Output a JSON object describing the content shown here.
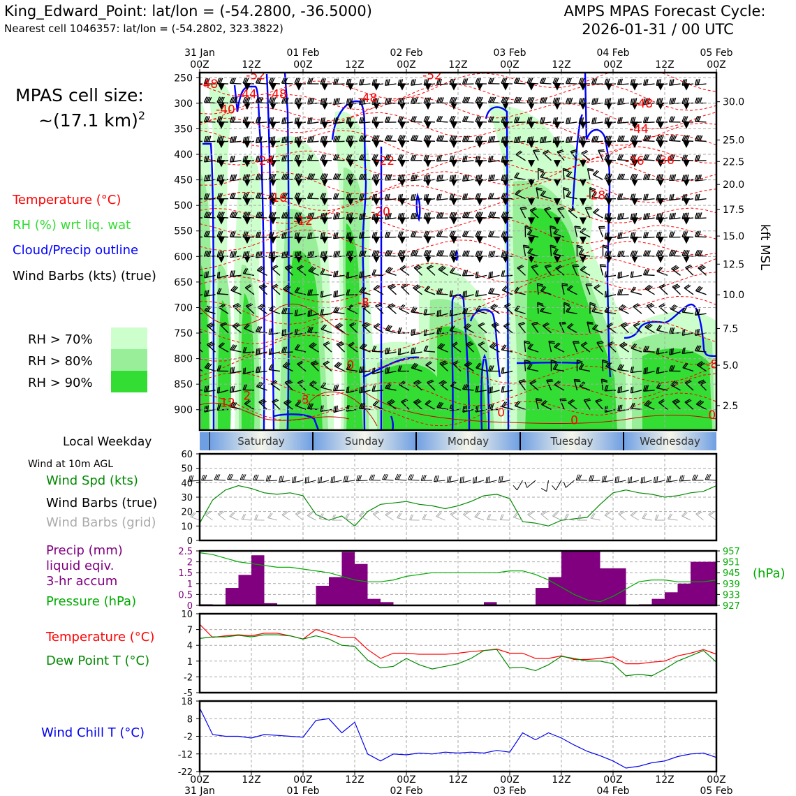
{
  "header": {
    "station_line": "King_Edward_Point: lat/lon = (-54.2800, -36.5000)",
    "cell_line": "Nearest cell 1046357: lat/lon = (-54.2802, 323.3822)",
    "cycle_title": "AMPS MPAS Forecast Cycle:",
    "cycle_time": "2026-01-31 / 00 UTC"
  },
  "legend": {
    "cell_size_label": "MPAS cell size:",
    "cell_size_value": "~(17.1 km)",
    "cell_size_exp": "2",
    "temperature": "Temperature (°C)",
    "rh": "RH (%) wrt liq. wat",
    "cloud": "Cloud/Precip outline",
    "wind_barbs": "Wind Barbs (kts) (true)",
    "rh70": "RH > 70%",
    "rh80": "RH > 80%",
    "rh90": "RH > 90%",
    "colors": {
      "temp": "#ff0000",
      "rh": "#33dd33",
      "cloud": "#0000ff",
      "rh70": "#ccffcc",
      "rh80": "#99ee99",
      "rh90": "#33dd33"
    }
  },
  "time_axis": {
    "top_dates": [
      "31 Jan",
      "",
      "01 Feb",
      "",
      "02 Feb",
      "",
      "03 Feb",
      "",
      "04 Feb",
      "",
      "05 Feb"
    ],
    "hours": [
      "00Z",
      "12Z",
      "00Z",
      "12Z",
      "00Z",
      "12Z",
      "00Z",
      "12Z",
      "00Z",
      "12Z",
      "00Z"
    ]
  },
  "weekday": {
    "title": "Local Weekday",
    "days": [
      "Saturday",
      "Sunday",
      "Monday",
      "Tuesday",
      "Wednesday"
    ]
  },
  "wind_panel": {
    "subtitle": "Wind at 10m AGL",
    "label_speed": "Wind Spd (kts)",
    "label_barbs": "Wind Barbs (true)",
    "label_grid": "Wind Barbs (grid)"
  },
  "precip_panel": {
    "label1": "Precip (mm)",
    "label2": "liquid eqiv.",
    "label3": "3-hr accum",
    "label_pressure": "Pressure (hPa)",
    "hpa_unit": "(hPa)"
  },
  "temp_panel": {
    "label_temp": "Temperature (°C)",
    "label_dew": "Dew Point T (°C)"
  },
  "chill_panel": {
    "label": "Wind Chill T (°C)"
  },
  "xsect_axes": {
    "right_label": "kft MSL"
  },
  "chart_data": [
    {
      "type": "heatmap",
      "title": "",
      "yaxis": "pressure (hPa)",
      "ylim": [
        940,
        240
      ],
      "y_ticks": [
        250,
        300,
        350,
        400,
        450,
        500,
        550,
        600,
        650,
        700,
        750,
        800,
        850,
        900
      ],
      "right_ticks_kft": [
        "30.0",
        "25.0",
        "22.5",
        "20.0",
        "17.5",
        "15.0",
        "12.5",
        "10.0",
        "7.5",
        "5.0",
        "2.5"
      ],
      "right_ticks_p": [
        297,
        372,
        414,
        459,
        508,
        560,
        615,
        675,
        741,
        813,
        892
      ],
      "x_hours": [
        0,
        120
      ],
      "temp_labels": [
        {
          "x": 2,
          "p": 262,
          "text": "-48"
        },
        {
          "x": 13,
          "p": 245,
          "text": "-52"
        },
        {
          "x": 11,
          "p": 282,
          "text": "-44"
        },
        {
          "x": 6,
          "p": 312,
          "text": "-40"
        },
        {
          "x": 18,
          "p": 282,
          "text": "-48"
        },
        {
          "x": 39,
          "p": 289,
          "text": "-48"
        },
        {
          "x": 54,
          "p": 245,
          "text": "-52"
        },
        {
          "x": 103,
          "p": 300,
          "text": "-48"
        },
        {
          "x": 102,
          "p": 350,
          "text": "-44"
        },
        {
          "x": 108,
          "p": 411,
          "text": "-36"
        },
        {
          "x": 101,
          "p": 412,
          "text": "-36"
        },
        {
          "x": 15,
          "p": 412,
          "text": "-24"
        },
        {
          "x": 43,
          "p": 412,
          "text": "-22"
        },
        {
          "x": 92,
          "p": 480,
          "text": "-28"
        },
        {
          "x": 18,
          "p": 485,
          "text": "-16"
        },
        {
          "x": 24,
          "p": 530,
          "text": "-12"
        },
        {
          "x": 42,
          "p": 512,
          "text": "-20"
        },
        {
          "x": 38,
          "p": 690,
          "text": "-8"
        },
        {
          "x": 35,
          "p": 812,
          "text": "0"
        },
        {
          "x": 24,
          "p": 880,
          "text": "-8"
        },
        {
          "x": 6,
          "p": 886,
          "text": "-12"
        },
        {
          "x": 11,
          "p": 872,
          "text": "2"
        },
        {
          "x": 70,
          "p": 905,
          "text": "0"
        },
        {
          "x": 87,
          "p": 920,
          "text": "0"
        },
        {
          "x": 119,
          "p": 910,
          "text": "0"
        },
        {
          "x": 119,
          "p": 811,
          "text": "-8"
        }
      ]
    },
    {
      "type": "line",
      "title": "",
      "ylabel": "Wind Spd (kts)",
      "ylim": [
        0,
        60
      ],
      "y_ticks": [
        0,
        10,
        20,
        30,
        40,
        50,
        60
      ],
      "x": [
        0,
        3,
        6,
        9,
        12,
        15,
        18,
        21,
        24,
        27,
        30,
        33,
        36,
        39,
        42,
        45,
        48,
        51,
        54,
        57,
        60,
        63,
        66,
        69,
        72,
        75,
        78,
        81,
        84,
        87,
        90,
        93,
        96,
        99,
        102,
        105,
        108,
        111,
        114,
        117,
        120
      ],
      "series": [
        {
          "values": [
            12,
            28,
            35,
            38,
            36,
            33,
            32,
            33,
            31,
            18,
            14,
            17,
            10,
            20,
            25,
            26,
            27,
            25,
            24,
            22,
            24,
            27,
            31,
            32,
            29,
            13,
            12,
            10,
            14,
            15,
            16,
            25,
            33,
            35,
            33,
            32,
            30,
            31,
            33,
            34,
            38
          ]
        }
      ]
    },
    {
      "type": "bar",
      "title": "",
      "ylabel": "Precip (mm)",
      "ylim": [
        0,
        2.5
      ],
      "y_ticks": [
        0,
        0.5,
        1.0,
        1.5,
        2.0,
        2.5
      ],
      "pressure_ticks": [
        927,
        933,
        939,
        945,
        951,
        957
      ],
      "pressure_ylim": [
        927,
        957
      ],
      "x": [
        0,
        3,
        6,
        9,
        12,
        15,
        18,
        21,
        24,
        27,
        30,
        33,
        36,
        39,
        42,
        45,
        48,
        51,
        54,
        57,
        60,
        63,
        66,
        69,
        72,
        75,
        78,
        81,
        84,
        87,
        90,
        93,
        96,
        99,
        102,
        105,
        108,
        111,
        114,
        117
      ],
      "values": [
        0.05,
        0,
        0.8,
        1.4,
        2.3,
        0.1,
        0,
        0,
        0,
        0.9,
        1.3,
        2.45,
        1.9,
        0.3,
        0.15,
        0,
        0,
        0.02,
        0,
        0,
        0,
        0,
        0.15,
        0,
        0,
        0,
        0.8,
        1.3,
        2.5,
        2.5,
        2.5,
        1.7,
        1.7,
        0,
        0.05,
        0.3,
        0.6,
        1.0,
        2.0,
        2.0
      ],
      "series": [
        {
          "name": "Pressure (hPa)",
          "x": [
            0,
            3,
            6,
            9,
            12,
            15,
            18,
            21,
            24,
            27,
            30,
            33,
            36,
            39,
            42,
            45,
            48,
            51,
            54,
            57,
            60,
            63,
            66,
            69,
            72,
            75,
            78,
            81,
            84,
            87,
            90,
            93,
            96,
            99,
            102,
            105,
            108,
            111,
            114,
            117,
            120
          ],
          "values": [
            956,
            955,
            953,
            951,
            950,
            949,
            948,
            948,
            947,
            946,
            945,
            943,
            941,
            940,
            940,
            941,
            943,
            944,
            945,
            945,
            945,
            945,
            945,
            945,
            946,
            946,
            944,
            941,
            937,
            933,
            930,
            929,
            932,
            936,
            940,
            941,
            941,
            940,
            940,
            940,
            941
          ]
        }
      ]
    },
    {
      "type": "line",
      "title": "",
      "ylim": [
        -5,
        10
      ],
      "y_ticks": [
        -5,
        -2,
        1,
        4,
        7,
        10
      ],
      "x": [
        0,
        3,
        6,
        9,
        12,
        15,
        18,
        21,
        24,
        27,
        30,
        33,
        36,
        39,
        42,
        45,
        48,
        51,
        54,
        57,
        60,
        63,
        66,
        69,
        72,
        75,
        78,
        81,
        84,
        87,
        90,
        93,
        96,
        99,
        102,
        105,
        108,
        111,
        114,
        117,
        120
      ],
      "series": [
        {
          "name": "Temperature (°C)",
          "values": [
            8,
            5.5,
            5.8,
            6,
            5.8,
            6.3,
            6.3,
            5.8,
            5.2,
            7,
            6.2,
            5.5,
            5.5,
            3.2,
            1.5,
            2.5,
            2.5,
            2.3,
            2.3,
            2.3,
            2.5,
            2.8,
            3,
            3.3,
            2.5,
            2.5,
            1.5,
            1.5,
            2,
            1.3,
            1.3,
            1.5,
            1.8,
            0.5,
            0.5,
            0.8,
            1,
            2,
            2.5,
            3.2,
            2.3
          ]
        },
        {
          "name": "Dew Point T (°C)",
          "values": [
            5.3,
            5.6,
            5.6,
            5.9,
            5.6,
            6,
            6,
            5.8,
            5.2,
            5.8,
            5.2,
            4,
            3.8,
            1.2,
            -0.3,
            0,
            1.5,
            0.3,
            -0.5,
            0,
            0.5,
            1.5,
            3,
            3.2,
            -0.3,
            -0.2,
            -0.8,
            0.3,
            1.9,
            1.5,
            1,
            1,
            0.5,
            -1.8,
            -1.5,
            -1.8,
            -0.5,
            1,
            2,
            3,
            0.8
          ]
        }
      ]
    },
    {
      "type": "line",
      "title": "",
      "ylim": [
        -22,
        18
      ],
      "y_ticks": [
        -22,
        -12,
        -2,
        8,
        18
      ],
      "x": [
        0,
        3,
        6,
        9,
        12,
        15,
        18,
        21,
        24,
        27,
        30,
        33,
        36,
        39,
        42,
        45,
        48,
        51,
        54,
        57,
        60,
        63,
        66,
        69,
        72,
        75,
        78,
        81,
        84,
        87,
        90,
        93,
        96,
        99,
        102,
        105,
        108,
        111,
        114,
        117,
        120
      ],
      "series": [
        {
          "name": "Wind Chill T (°C)",
          "values": [
            14,
            -1,
            -2,
            -2,
            -3,
            -1,
            -1.5,
            -2,
            -2.5,
            7,
            8,
            0,
            6,
            -12,
            -16,
            -12,
            -12.5,
            -11.5,
            -12,
            -11,
            -11.5,
            -11,
            -11.5,
            -10,
            -11,
            0,
            -4,
            0,
            -3,
            -7,
            -10.5,
            -13,
            -16,
            -20,
            -19,
            -17,
            -16,
            -13.5,
            -12,
            -11.5,
            -14
          ]
        }
      ]
    }
  ]
}
